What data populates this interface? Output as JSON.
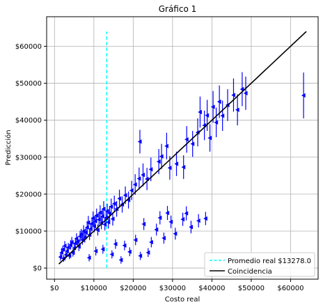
{
  "chart_data": {
    "type": "scatter",
    "title": "Gráfico 1",
    "xlabel": "Costo real",
    "ylabel": "Predicción",
    "xlim": [
      -2000,
      67000
    ],
    "ylim": [
      -3000,
      68000
    ],
    "x_ticks": [
      0,
      10000,
      20000,
      30000,
      40000,
      50000,
      60000
    ],
    "x_tick_labels": [
      "$0",
      "$10000",
      "$20000",
      "$30000",
      "$40000",
      "$50000",
      "$60000"
    ],
    "y_ticks": [
      0,
      10000,
      20000,
      30000,
      40000,
      50000,
      60000
    ],
    "y_tick_labels": [
      "$0",
      "$10000",
      "$20000",
      "$30000",
      "$40000",
      "$50000",
      "$60000"
    ],
    "grid": true,
    "legend_position": "bottom-right",
    "colors": {
      "points": "#0000ff",
      "mean_line": "#00ffff",
      "identity_line": "#000000",
      "grid": "#b0b0b0"
    },
    "mean_line": {
      "name": "Promedio real $13278.0",
      "x": 13278,
      "y_range": [
        0,
        64000
      ],
      "style": "dashed"
    },
    "identity_line": {
      "name": "Coincidencia",
      "points": [
        [
          1100,
          1100
        ],
        [
          64000,
          64000
        ]
      ]
    },
    "series": [
      {
        "marker": "triangle-left",
        "points": [
          [
            1500,
            3000,
            1000
          ],
          [
            1800,
            4200,
            1200
          ],
          [
            2100,
            5000,
            1000
          ],
          [
            2300,
            2600,
            900
          ],
          [
            2600,
            6000,
            1300
          ],
          [
            2900,
            3600,
            1000
          ],
          [
            3200,
            4600,
            1100
          ],
          [
            3500,
            5600,
            1200
          ],
          [
            3800,
            3300,
            900
          ],
          [
            4100,
            6300,
            1300
          ],
          [
            4400,
            7000,
            1400
          ],
          [
            4700,
            4100,
            1000
          ],
          [
            5000,
            5400,
            1200
          ],
          [
            5300,
            6700,
            1300
          ],
          [
            5600,
            8000,
            1400
          ],
          [
            5900,
            7200,
            1300
          ],
          [
            6200,
            5800,
            1200
          ],
          [
            6500,
            8600,
            1500
          ],
          [
            6800,
            9200,
            1400
          ],
          [
            7100,
            7600,
            1300
          ],
          [
            7400,
            10000,
            1600
          ],
          [
            7700,
            8300,
            1400
          ],
          [
            8000,
            9600,
            1500
          ],
          [
            8300,
            11000,
            1700
          ],
          [
            8600,
            12300,
            1800
          ],
          [
            8900,
            9000,
            1400
          ],
          [
            9200,
            10600,
            1600
          ],
          [
            9500,
            12000,
            1700
          ],
          [
            9800,
            13500,
            1800
          ],
          [
            10100,
            11300,
            1600
          ],
          [
            10400,
            12700,
            1700
          ],
          [
            10700,
            14200,
            1900
          ],
          [
            11000,
            10300,
            1500
          ],
          [
            11300,
            13100,
            1800
          ],
          [
            11600,
            15000,
            2000
          ],
          [
            11900,
            12200,
            1700
          ],
          [
            12200,
            14000,
            1900
          ],
          [
            12500,
            16000,
            2100
          ],
          [
            12800,
            11800,
            1600
          ],
          [
            13100,
            13600,
            1800
          ],
          [
            13400,
            15400,
            2000
          ],
          [
            13700,
            12400,
            1700
          ],
          [
            14000,
            14800,
            2000
          ],
          [
            14400,
            16600,
            2200
          ],
          [
            14800,
            13300,
            1800
          ],
          [
            15200,
            17400,
            2200
          ],
          [
            15800,
            16000,
            2100
          ],
          [
            16500,
            18800,
            2400
          ],
          [
            17200,
            17200,
            2200
          ],
          [
            18000,
            19700,
            2400
          ],
          [
            18800,
            18400,
            2300
          ],
          [
            19600,
            21000,
            2600
          ],
          [
            20500,
            22600,
            2800
          ],
          [
            21500,
            24200,
            3000
          ],
          [
            22500,
            25200,
            3100
          ],
          [
            23500,
            24100,
            3000
          ],
          [
            24500,
            26700,
            3200
          ],
          [
            26500,
            28800,
            3400
          ],
          [
            28500,
            33000,
            3600
          ],
          [
            21700,
            34200,
            3200
          ],
          [
            27200,
            30200,
            3400
          ],
          [
            29300,
            27100,
            3200
          ],
          [
            31000,
            28200,
            3300
          ],
          [
            32800,
            27300,
            3200
          ],
          [
            33600,
            34800,
            3600
          ],
          [
            35100,
            33600,
            3500
          ],
          [
            36400,
            36700,
            3800
          ],
          [
            37000,
            42200,
            4200
          ],
          [
            38100,
            38600,
            4000
          ],
          [
            38800,
            41300,
            4200
          ],
          [
            39500,
            35200,
            3700
          ],
          [
            40300,
            43600,
            4300
          ],
          [
            41100,
            39400,
            4000
          ],
          [
            41900,
            45000,
            4400
          ],
          [
            42700,
            41200,
            4100
          ],
          [
            44000,
            44100,
            4300
          ],
          [
            45500,
            46800,
            4500
          ],
          [
            46500,
            42800,
            4200
          ],
          [
            47700,
            48400,
            4600
          ],
          [
            48600,
            47300,
            4500
          ],
          [
            63300,
            46700,
            6200
          ],
          [
            8800,
            2800,
            1000
          ],
          [
            10500,
            4600,
            1200
          ],
          [
            12300,
            5100,
            1200
          ],
          [
            14600,
            3700,
            1100
          ],
          [
            15500,
            6500,
            1300
          ],
          [
            16900,
            2200,
            1000
          ],
          [
            17800,
            6100,
            1300
          ],
          [
            19100,
            4400,
            1200
          ],
          [
            20600,
            7600,
            1400
          ],
          [
            21800,
            3300,
            1100
          ],
          [
            22700,
            11900,
            1600
          ],
          [
            23800,
            4200,
            1200
          ],
          [
            24600,
            7000,
            1400
          ],
          [
            25900,
            10400,
            1600
          ],
          [
            26800,
            13600,
            1800
          ],
          [
            27800,
            8100,
            1500
          ],
          [
            28700,
            14900,
            1900
          ],
          [
            29600,
            12500,
            1700
          ],
          [
            30700,
            9300,
            1600
          ],
          [
            32600,
            13200,
            1800
          ],
          [
            33500,
            14800,
            1900
          ],
          [
            34700,
            11100,
            1700
          ],
          [
            36600,
            12800,
            1800
          ],
          [
            38400,
            13400,
            1800
          ]
        ]
      }
    ]
  }
}
